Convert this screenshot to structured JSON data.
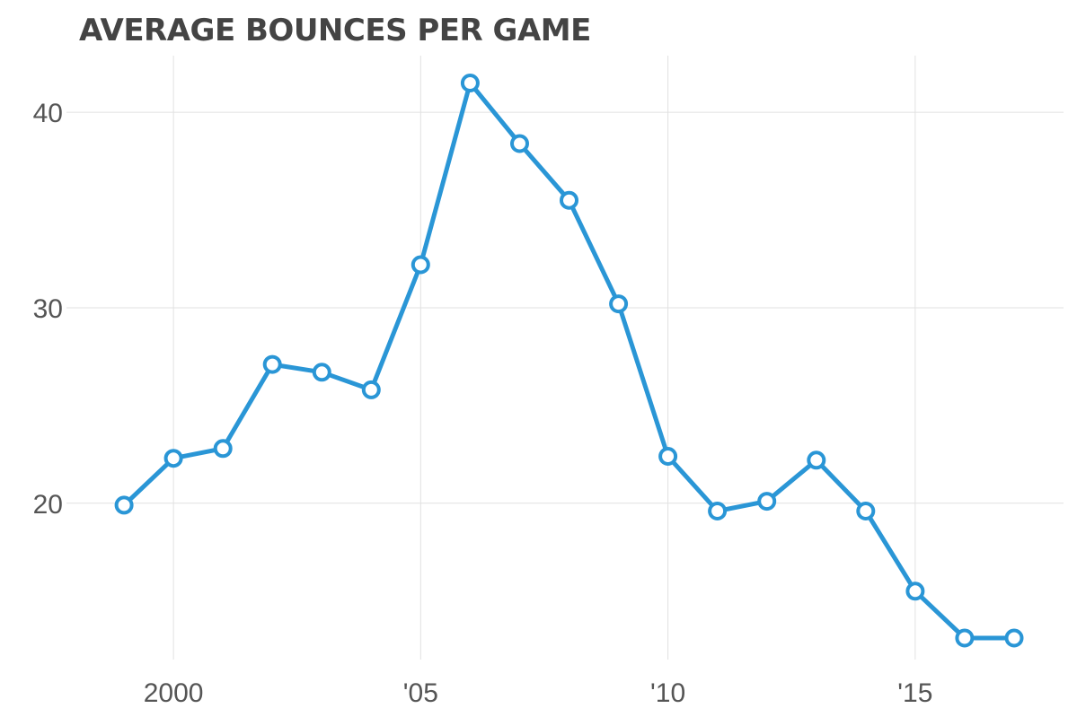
{
  "chart_data": {
    "type": "line",
    "title": "AVERAGE BOUNCES PER GAME",
    "xlabel": "",
    "ylabel": "",
    "x": [
      1999,
      2000,
      2001,
      2002,
      2003,
      2004,
      2005,
      2006,
      2007,
      2008,
      2009,
      2010,
      2011,
      2012,
      2013,
      2014,
      2015,
      2016,
      2017
    ],
    "series": [
      {
        "values": [
          19.9,
          22.3,
          22.8,
          27.1,
          26.7,
          25.8,
          32.2,
          41.5,
          38.4,
          35.5,
          30.2,
          22.4,
          19.6,
          20.1,
          22.2,
          19.6,
          15.5,
          13.1,
          13.1
        ]
      }
    ],
    "x_ticks": [
      {
        "value": 2000,
        "label": "2000"
      },
      {
        "value": 2005,
        "label": "'05"
      },
      {
        "value": 2010,
        "label": "'10"
      },
      {
        "value": 2015,
        "label": "'15"
      }
    ],
    "y_ticks": [
      {
        "value": 20,
        "label": "20"
      },
      {
        "value": 30,
        "label": "30"
      },
      {
        "value": 40,
        "label": "40"
      }
    ],
    "xlim": [
      1998,
      2018
    ],
    "ylim": [
      12,
      42.9
    ],
    "grid": true,
    "legend": "none",
    "colors": {
      "line": "#2a96d6",
      "point_fill": "#ffffff",
      "grid": "#e1e1e1",
      "tick_text": "#555555",
      "title_text": "#444444"
    }
  }
}
